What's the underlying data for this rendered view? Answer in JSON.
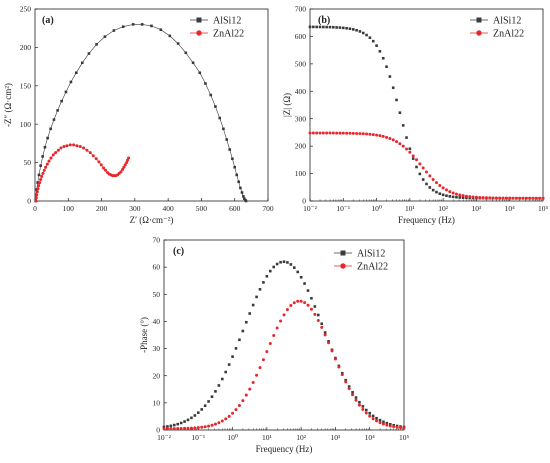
{
  "colors": {
    "alsi": "#3a3a3a",
    "znal": "#e8262b",
    "axis": "#222222"
  },
  "chart_data": [
    {
      "panel": "(a)",
      "type": "scatter",
      "xlabel": "Z′ (Ω·cm⁻²)",
      "ylabel": "-Z″ (Ω·cm²)",
      "xlim": [
        0,
        700
      ],
      "ylim": [
        0,
        250
      ],
      "xticks": [
        "0",
        "100",
        "200",
        "300",
        "400",
        "500",
        "600",
        "700"
      ],
      "yticks": [
        "0",
        "50",
        "100",
        "150",
        "200",
        "250"
      ],
      "legend_position": "top-right",
      "series": [
        {
          "name": "AlSi12",
          "marker": "square",
          "connected": true,
          "values": [
            [
              2,
              0
            ],
            [
              3,
              8
            ],
            [
              5,
              15
            ],
            [
              8,
              24
            ],
            [
              12,
              34
            ],
            [
              17,
              46
            ],
            [
              23,
              58
            ],
            [
              30,
              70
            ],
            [
              38,
              82
            ],
            [
              47,
              94
            ],
            [
              57,
              106
            ],
            [
              68,
              118
            ],
            [
              80,
              130
            ],
            [
              93,
              142
            ],
            [
              108,
              155
            ],
            [
              124,
              167
            ],
            [
              142,
              180
            ],
            [
              162,
              192
            ],
            [
              185,
              204
            ],
            [
              210,
              214
            ],
            [
              237,
              222
            ],
            [
              265,
              227
            ],
            [
              295,
              230
            ],
            [
              322,
              230
            ],
            [
              350,
              228
            ],
            [
              378,
              223
            ],
            [
              405,
              215
            ],
            [
              430,
              205
            ],
            [
              453,
              193
            ],
            [
              475,
              180
            ],
            [
              495,
              167
            ],
            [
              512,
              153
            ],
            [
              528,
              138
            ],
            [
              542,
              123
            ],
            [
              555,
              108
            ],
            [
              566,
              94
            ],
            [
              576,
              80
            ],
            [
              585,
              67
            ],
            [
              593,
              55
            ],
            [
              600,
              44
            ],
            [
              606,
              34
            ],
            [
              612,
              25
            ],
            [
              617,
              17
            ],
            [
              622,
              11
            ],
            [
              626,
              6
            ],
            [
              629,
              3
            ],
            [
              632,
              1
            ],
            [
              634,
              0
            ]
          ]
        },
        {
          "name": "ZnAl22",
          "marker": "circle",
          "connected": true,
          "values": [
            [
              3,
              0
            ],
            [
              4,
              4
            ],
            [
              5,
              8
            ],
            [
              7,
              12
            ],
            [
              9,
              16
            ],
            [
              11,
              20
            ],
            [
              14,
              24
            ],
            [
              17,
              28
            ],
            [
              20,
              32
            ],
            [
              24,
              36
            ],
            [
              28,
              40
            ],
            [
              32,
              44
            ],
            [
              37,
              48
            ],
            [
              42,
              52
            ],
            [
              48,
              56
            ],
            [
              55,
              60
            ],
            [
              62,
              63
            ],
            [
              70,
              66
            ],
            [
              78,
              69
            ],
            [
              87,
              71
            ],
            [
              96,
              72
            ],
            [
              106,
              73
            ],
            [
              116,
              73
            ],
            [
              126,
              72
            ],
            [
              136,
              71
            ],
            [
              146,
              69
            ],
            [
              156,
              66
            ],
            [
              166,
              63
            ],
            [
              175,
              59
            ],
            [
              184,
              55
            ],
            [
              192,
              51
            ],
            [
              199,
              47
            ],
            [
              206,
              43
            ],
            [
              212,
              40
            ],
            [
              218,
              37
            ],
            [
              223,
              35
            ],
            [
              228,
              34
            ],
            [
              233,
              33
            ],
            [
              238,
              33
            ],
            [
              243,
              33
            ],
            [
              248,
              34
            ],
            [
              253,
              36
            ],
            [
              258,
              38
            ],
            [
              263,
              41
            ],
            [
              267,
              44
            ],
            [
              271,
              47
            ],
            [
              275,
              50
            ],
            [
              278,
              53
            ],
            [
              281,
              56
            ]
          ]
        }
      ]
    },
    {
      "panel": "(b)",
      "type": "scatter",
      "xlabel": "Frequency (Hz)",
      "ylabel": "|Z| (Ω)",
      "xscale": "log",
      "xlim": [
        0.01,
        100000
      ],
      "ylim": [
        0,
        700
      ],
      "xticks": [
        "10⁻²",
        "10⁻¹",
        "10⁰",
        "10¹",
        "10²",
        "10³",
        "10⁴",
        "10⁵"
      ],
      "yticks": [
        "0",
        "100",
        "200",
        "300",
        "400",
        "500",
        "600",
        "700"
      ],
      "legend_position": "top-right",
      "series": [
        {
          "name": "AlSi12",
          "marker": "square",
          "model": {
            "base": 10,
            "amplitude": 625,
            "f_mid": 5,
            "exponent": 1.3
          }
        },
        {
          "name": "ZnAl22",
          "marker": "circle",
          "model": {
            "base": 10,
            "amplitude": 238,
            "f_mid": 22,
            "exponent": 1.1
          }
        }
      ]
    },
    {
      "panel": "(c)",
      "type": "scatter",
      "xlabel": "Frequency (Hz)",
      "ylabel": "-Phase (°)",
      "xscale": "log",
      "xlim": [
        0.01,
        100000
      ],
      "ylim": [
        0,
        70
      ],
      "xticks": [
        "10⁻²",
        "10⁻¹",
        "10⁰",
        "10¹",
        "10²",
        "10³",
        "10⁴",
        "10⁵"
      ],
      "yticks": [
        "0",
        "10",
        "20",
        "30",
        "40",
        "50",
        "60",
        "70"
      ],
      "legend_position": "top-right",
      "series": [
        {
          "name": "AlSi12",
          "marker": "square",
          "model": {
            "base": 0.5,
            "peak": 62,
            "f_peak": 31,
            "width_decades": 1.15
          }
        },
        {
          "name": "ZnAl22",
          "marker": "circle",
          "model": {
            "base": 0.5,
            "peak": 47.5,
            "f_peak": 90,
            "width_decades": 0.95
          }
        }
      ]
    }
  ]
}
